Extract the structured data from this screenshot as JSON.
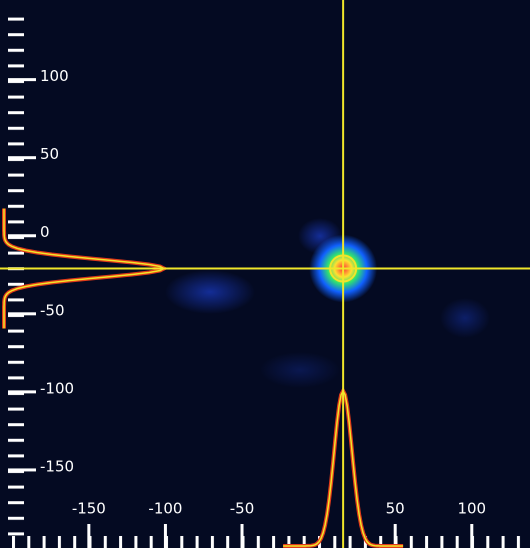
{
  "chart_data": {
    "type": "beam-profile",
    "xlim": [
      -208,
      138
    ],
    "ylim": [
      -200,
      151
    ],
    "xticks": [
      -150,
      -100,
      -50,
      50,
      100
    ],
    "yticks": [
      100,
      50,
      0,
      -50,
      -100,
      -150
    ],
    "crosshair": {
      "x": 16,
      "y": -21
    },
    "crosshair_color": "#f0e62a",
    "background": "#040a22"
  }
}
